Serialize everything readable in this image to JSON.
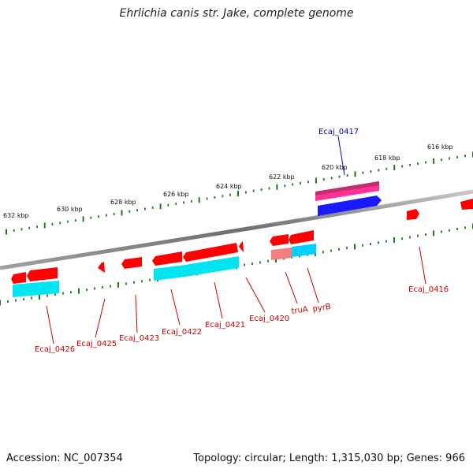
{
  "title": "Ehrlichia canis str. Jake, complete genome",
  "footer": {
    "accession": "Accession: NC_007354",
    "summary": "Topology: circular; Length: 1,315,030 bp; Genes: 966"
  },
  "colors": {
    "backbone": "#8c8c8c",
    "tick": "#1e7a1e",
    "gene_forward": "#ff0000",
    "gene_reverse": "#ff0000",
    "cds_cyan": "#00e5f0",
    "cds_pink": "#ff3399",
    "cds_blue": "#1a1aff",
    "cds_salmon": "#f08080",
    "label_red": "#cc0000",
    "label_blue": "#0000cc"
  },
  "scale_labels": [
    "632 kbp",
    "630 kbp",
    "628 kbp",
    "626 kbp",
    "624 kbp",
    "622 kbp",
    "620 kbp",
    "618 kbp",
    "616 kbp"
  ],
  "gene_labels": [
    {
      "name": "Ecaj_0417",
      "color": "blue"
    },
    {
      "name": "Ecaj_0416",
      "color": "red"
    },
    {
      "name": "pyrB",
      "color": "red"
    },
    {
      "name": "truA",
      "color": "red"
    },
    {
      "name": "Ecaj_0420",
      "color": "red"
    },
    {
      "name": "Ecaj_0421",
      "color": "red"
    },
    {
      "name": "Ecaj_0422",
      "color": "red"
    },
    {
      "name": "Ecaj_0423",
      "color": "red"
    },
    {
      "name": "Ecaj_0425",
      "color": "red"
    },
    {
      "name": "Ecaj_0426",
      "color": "red"
    }
  ]
}
